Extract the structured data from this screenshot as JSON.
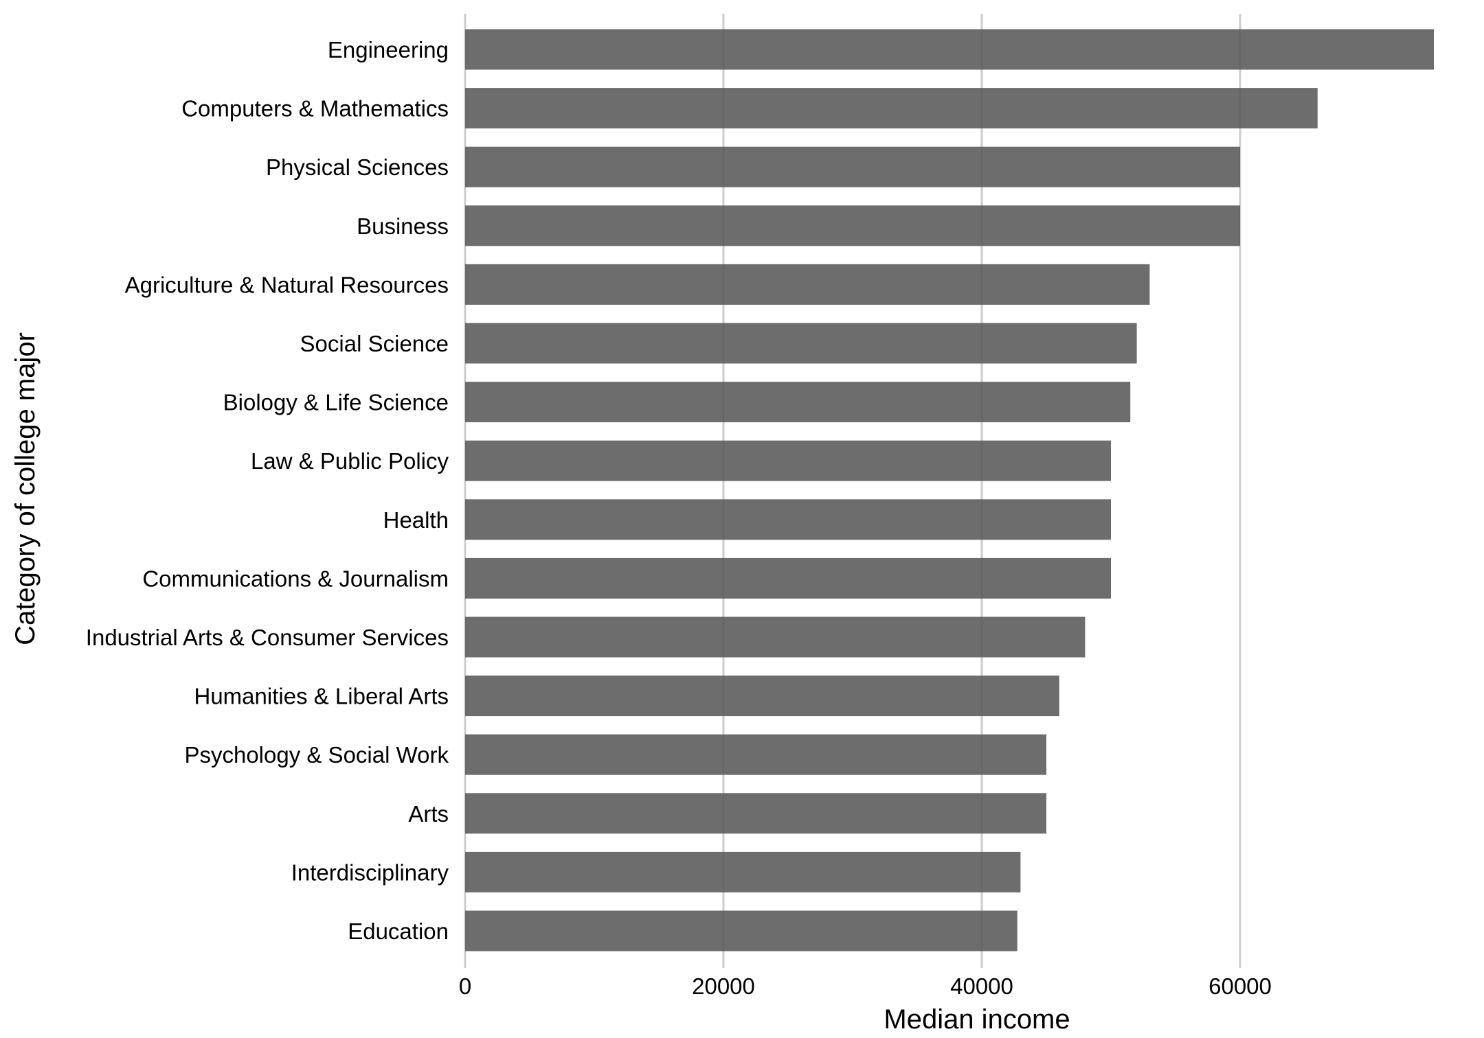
{
  "chart_data": {
    "type": "bar",
    "orientation": "horizontal",
    "title": "",
    "xlabel": "Median income",
    "ylabel": "Category of college major",
    "xlim": [
      0,
      75000
    ],
    "xticks": [
      0,
      20000,
      40000,
      60000
    ],
    "xtick_labels": [
      "0",
      "20000",
      "40000",
      "60000"
    ],
    "grid": "vertical major gridlines",
    "legend": "none",
    "colors": {
      "bar": "#595959",
      "grid": "#cccccc"
    },
    "categories": [
      "Engineering",
      "Computers & Mathematics",
      "Physical Sciences",
      "Business",
      "Agriculture & Natural Resources",
      "Social Science",
      "Biology & Life Science",
      "Law & Public Policy",
      "Health",
      "Communications & Journalism",
      "Industrial Arts & Consumer Services",
      "Humanities & Liberal Arts",
      "Psychology & Social Work",
      "Arts",
      "Interdisciplinary",
      "Education"
    ],
    "values": [
      75000,
      66000,
      60000,
      60000,
      53000,
      52000,
      51500,
      50000,
      50000,
      50000,
      48000,
      46000,
      45000,
      45000,
      43000,
      42750
    ]
  }
}
